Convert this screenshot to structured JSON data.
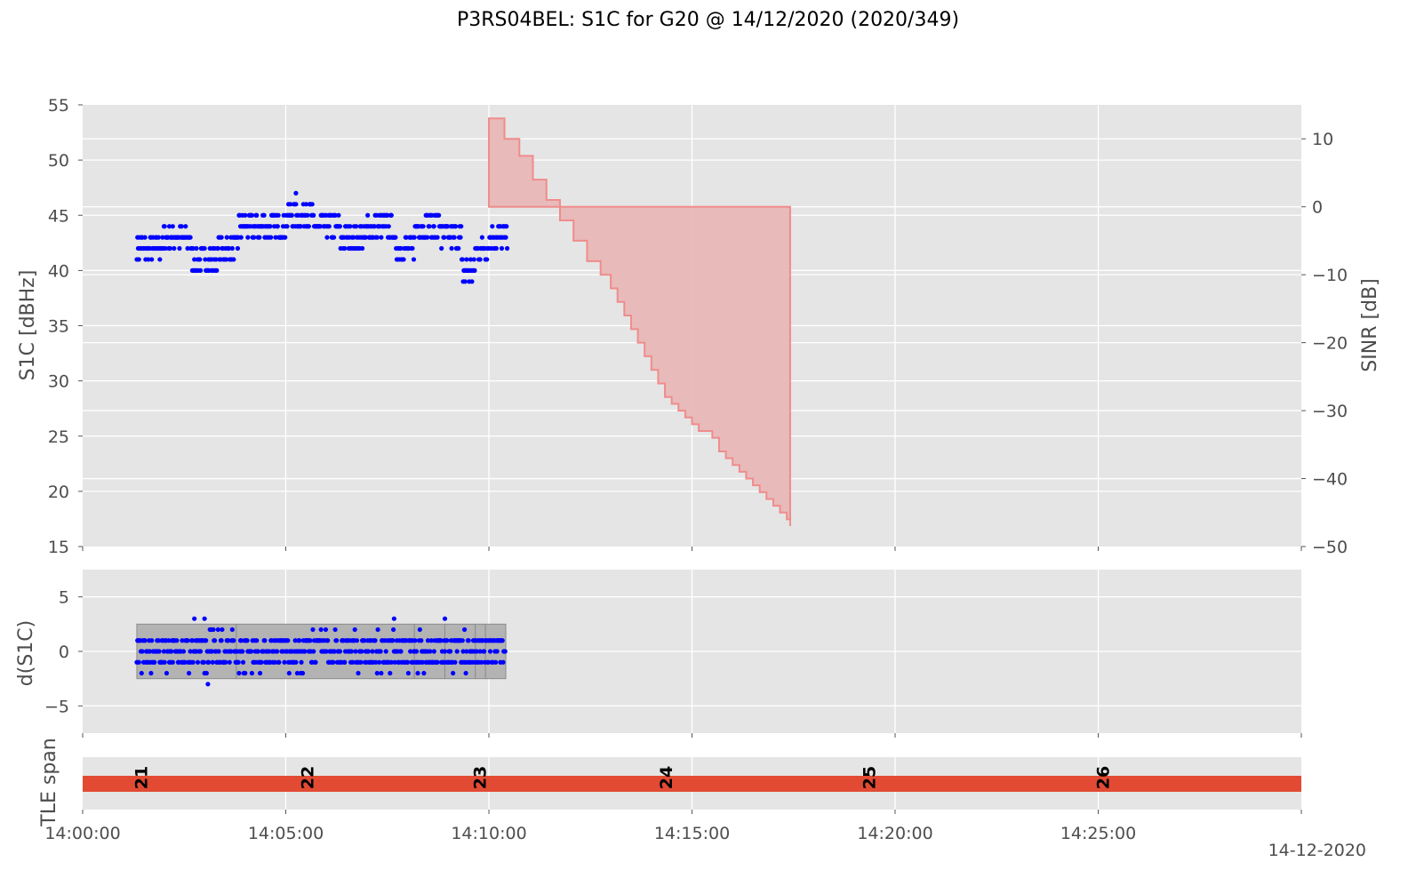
{
  "title": "P3RS04BEL: S1C for G20 @ 14/12/2020 (2020/349)",
  "date_label": "14-12-2020",
  "colors": {
    "background_panel": "#e5e5e5",
    "grid": "#ffffff",
    "s1c_points": "#0000ff",
    "sinr_fill": "#e8b7b7",
    "sinr_edge": "#f08c8c",
    "dS1C_boxes": "#b3b3b3",
    "tle_bar": "#e24a33"
  },
  "chart_data": [
    {
      "type": "scatter",
      "panel": "top",
      "ylabel": "S1C [dBHz]",
      "y2label": "SINR [dB]",
      "ylim": [
        15,
        55
      ],
      "y2lim": [
        -50,
        15
      ],
      "xlim": [
        "14:00:00",
        "14:30:00"
      ],
      "yticks": [
        "15",
        "20",
        "25",
        "30",
        "35",
        "40",
        "45",
        "50",
        "55"
      ],
      "y2ticks": [
        "−50",
        "−40",
        "−30",
        "−20",
        "−10",
        "0",
        "10"
      ],
      "series": [
        {
          "key": "s1c",
          "x_range": [
            "14:01:20",
            "14:10:28"
          ],
          "levels": [
            {
              "from": "14:01:20",
              "to": "14:02:00",
              "value": 42
            },
            {
              "from": "14:02:00",
              "to": "14:02:40",
              "value": 43
            },
            {
              "from": "14:02:40",
              "to": "14:03:20",
              "value": 41
            },
            {
              "from": "14:03:20",
              "to": "14:03:50",
              "value": 42
            },
            {
              "from": "14:03:50",
              "to": "14:04:30",
              "value": 43.5
            },
            {
              "from": "14:04:30",
              "to": "14:05:00",
              "value": 44
            },
            {
              "from": "14:05:00",
              "to": "14:05:40",
              "value": 45
            },
            {
              "from": "14:05:40",
              "to": "14:06:20",
              "value": 44
            },
            {
              "from": "14:06:20",
              "to": "14:07:00",
              "value": 43
            },
            {
              "from": "14:07:00",
              "to": "14:07:40",
              "value": 43.5
            },
            {
              "from": "14:07:40",
              "to": "14:08:10",
              "value": 41.5
            },
            {
              "from": "14:08:10",
              "to": "14:08:50",
              "value": 44
            },
            {
              "from": "14:08:50",
              "to": "14:09:20",
              "value": 42.5
            },
            {
              "from": "14:09:20",
              "to": "14:09:40",
              "value": 40
            },
            {
              "from": "14:09:40",
              "to": "14:10:00",
              "value": 42
            },
            {
              "from": "14:10:00",
              "to": "14:10:28",
              "value": 42.5
            }
          ]
        },
        {
          "key": "sinr",
          "type": "area-step",
          "axis": "right",
          "points": [
            {
              "t": "14:10:00",
              "v": 13
            },
            {
              "t": "14:10:23",
              "v": 10
            },
            {
              "t": "14:10:45",
              "v": 7.5
            },
            {
              "t": "14:11:05",
              "v": 4
            },
            {
              "t": "14:11:25",
              "v": 1
            },
            {
              "t": "14:11:45",
              "v": -2
            },
            {
              "t": "14:12:05",
              "v": -5
            },
            {
              "t": "14:12:25",
              "v": -8
            },
            {
              "t": "14:12:45",
              "v": -10
            },
            {
              "t": "14:13:00",
              "v": -12
            },
            {
              "t": "14:13:10",
              "v": -14
            },
            {
              "t": "14:13:20",
              "v": -16
            },
            {
              "t": "14:13:30",
              "v": -18
            },
            {
              "t": "14:13:40",
              "v": -20
            },
            {
              "t": "14:13:50",
              "v": -22
            },
            {
              "t": "14:14:00",
              "v": -24
            },
            {
              "t": "14:14:10",
              "v": -26
            },
            {
              "t": "14:14:20",
              "v": -28
            },
            {
              "t": "14:14:30",
              "v": -29
            },
            {
              "t": "14:14:40",
              "v": -30
            },
            {
              "t": "14:14:50",
              "v": -31
            },
            {
              "t": "14:15:00",
              "v": -32
            },
            {
              "t": "14:15:10",
              "v": -33
            },
            {
              "t": "14:15:30",
              "v": -34
            },
            {
              "t": "14:15:40",
              "v": -36
            },
            {
              "t": "14:15:50",
              "v": -37
            },
            {
              "t": "14:16:00",
              "v": -38
            },
            {
              "t": "14:16:10",
              "v": -39
            },
            {
              "t": "14:16:20",
              "v": -40
            },
            {
              "t": "14:16:30",
              "v": -41
            },
            {
              "t": "14:16:40",
              "v": -42
            },
            {
              "t": "14:16:50",
              "v": -43
            },
            {
              "t": "14:17:00",
              "v": -44
            },
            {
              "t": "14:17:10",
              "v": -45
            },
            {
              "t": "14:17:20",
              "v": -46
            },
            {
              "t": "14:17:25",
              "v": -47
            }
          ],
          "baseline": 0,
          "end": "14:17:25"
        }
      ]
    },
    {
      "type": "scatter",
      "panel": "middle",
      "ylabel": "d(S1C)",
      "ylim": [
        -7.5,
        7.5
      ],
      "yticks": [
        "−5",
        "0",
        "5"
      ],
      "band": {
        "ymin": -2.5,
        "ymax": 2.5
      },
      "segments": [
        {
          "from": "14:01:20",
          "to": "14:03:47"
        },
        {
          "from": "14:03:47",
          "to": "14:08:10"
        },
        {
          "from": "14:08:10",
          "to": "14:08:55"
        },
        {
          "from": "14:08:55",
          "to": "14:09:40"
        },
        {
          "from": "14:09:40",
          "to": "14:09:55"
        },
        {
          "from": "14:09:55",
          "to": "14:10:25"
        }
      ],
      "x_range": [
        "14:01:20",
        "14:10:25"
      ]
    },
    {
      "type": "bar",
      "panel": "bottom",
      "ylabel": "TLE span",
      "bar": {
        "from": "14:00:00",
        "to": "14:30:00"
      },
      "markers": [
        {
          "label": "21",
          "t": "14:01:25"
        },
        {
          "label": "22",
          "t": "14:05:30"
        },
        {
          "label": "23",
          "t": "14:09:45"
        },
        {
          "label": "24",
          "t": "14:14:20"
        },
        {
          "label": "25",
          "t": "14:19:20"
        },
        {
          "label": "26",
          "t": "14:25:05"
        }
      ],
      "xticks": [
        "14:00:00",
        "14:05:00",
        "14:10:00",
        "14:15:00",
        "14:20:00",
        "14:25:00"
      ]
    }
  ]
}
